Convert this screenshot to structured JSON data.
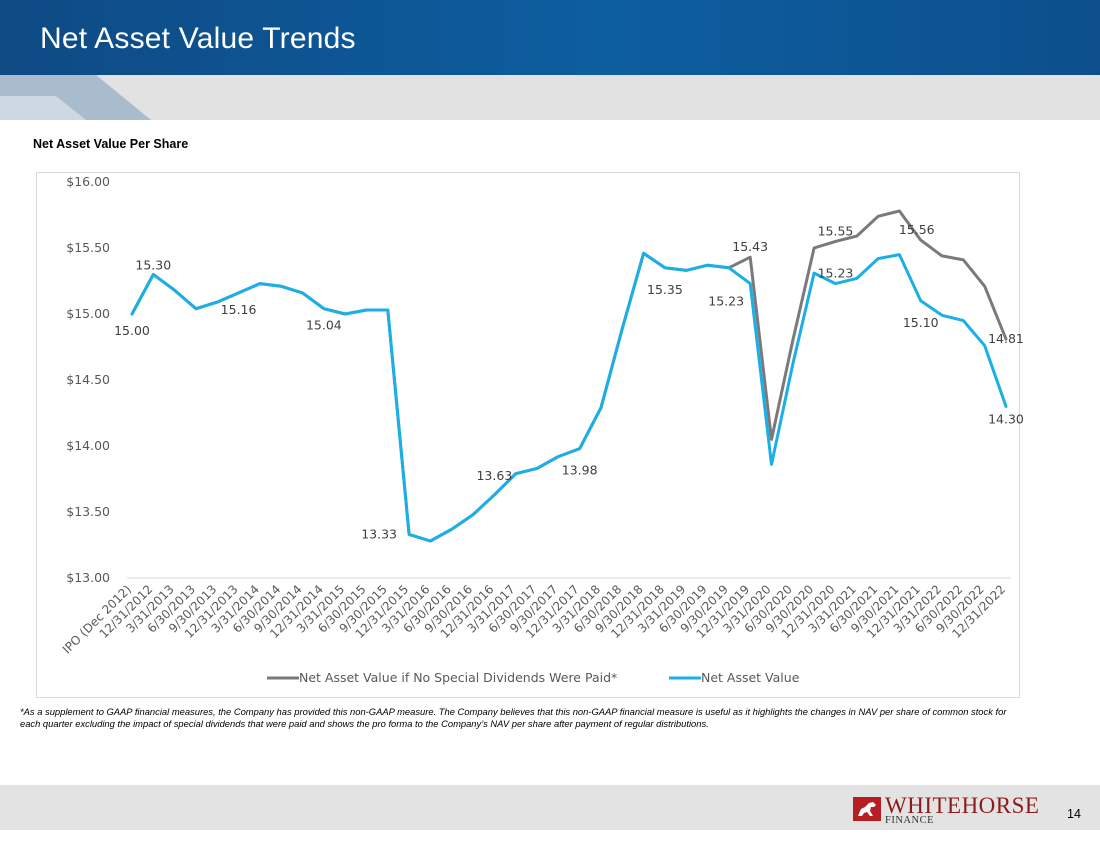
{
  "header": {
    "title": "Net Asset Value Trends"
  },
  "subtitle": "Net Asset Value Per Share",
  "footnote": "*As a supplement to GAAP financial measures, the Company has provided this non-GAAP measure. The Company believes that this non-GAAP financial measure is useful as it highlights the changes in NAV per share of common stock for each quarter excluding the impact of special dividends that were paid and shows the pro forma to the Company’s NAV per share after payment of regular distributions.",
  "logo": {
    "name": "WHITEHORSE",
    "sub": "FINANCE"
  },
  "page_number": "14",
  "colors": {
    "header_blue": "#0d5ea0",
    "nav_series": "#1aafe6",
    "nodiv_series": "#7a7a7a"
  },
  "chart_data": {
    "type": "line",
    "categories": [
      "IPO (Dec 2012)",
      "12/31/2012",
      "3/31/2013",
      "6/30/2013",
      "9/30/2013",
      "12/31/2013",
      "3/31/2014",
      "6/30/2014",
      "9/30/2014",
      "12/31/2014",
      "3/31/2015",
      "6/30/2015",
      "9/30/2015",
      "12/31/2015",
      "3/31/2016",
      "6/30/2016",
      "9/30/2016",
      "12/31/2016",
      "3/31/2017",
      "6/30/2017",
      "9/30/2017",
      "12/31/2017",
      "3/31/2018",
      "6/30/2018",
      "9/30/2018",
      "12/31/2018",
      "3/31/2019",
      "6/30/2019",
      "9/30/2019",
      "12/31/2019",
      "3/31/2020",
      "6/30/2020",
      "9/30/2020",
      "12/31/2020",
      "3/31/2021",
      "6/30/2021",
      "9/30/2021",
      "12/31/2021",
      "3/31/2022",
      "6/30/2022",
      "9/30/2022",
      "12/31/2022"
    ],
    "series": [
      {
        "name": "Net Asset Value if No Special Dividends Were Paid*",
        "color": "#7a7a7a",
        "values": [
          15.0,
          15.3,
          15.18,
          15.04,
          15.09,
          15.16,
          15.23,
          15.21,
          15.16,
          15.04,
          15.0,
          15.03,
          15.03,
          13.33,
          13.28,
          13.37,
          13.48,
          13.63,
          13.79,
          13.83,
          13.92,
          13.98,
          14.29,
          14.89,
          15.46,
          15.35,
          15.33,
          15.37,
          15.35,
          15.43,
          14.05,
          14.8,
          15.5,
          15.55,
          15.59,
          15.74,
          15.78,
          15.56,
          15.44,
          15.41,
          15.21,
          14.81
        ],
        "labels": [
          [
            0,
            "15.00"
          ],
          [
            1,
            "15.30"
          ],
          [
            5,
            "15.16"
          ],
          [
            9,
            "15.04"
          ],
          [
            29,
            "15.43"
          ],
          [
            33,
            "15.55"
          ],
          [
            37,
            "15.56"
          ],
          [
            41,
            "14.81"
          ]
        ]
      },
      {
        "name": "Net Asset Value",
        "color": "#1aafe6",
        "values": [
          15.0,
          15.3,
          15.18,
          15.04,
          15.09,
          15.16,
          15.23,
          15.21,
          15.16,
          15.04,
          15.0,
          15.03,
          15.03,
          13.33,
          13.28,
          13.37,
          13.48,
          13.63,
          13.79,
          13.83,
          13.92,
          13.98,
          14.29,
          14.89,
          15.46,
          15.35,
          15.33,
          15.37,
          15.35,
          15.23,
          13.86,
          14.62,
          15.31,
          15.23,
          15.27,
          15.42,
          15.45,
          15.1,
          14.99,
          14.95,
          14.76,
          14.3
        ],
        "labels": [
          [
            13,
            "13.33"
          ],
          [
            17,
            "13.63"
          ],
          [
            21,
            "13.98"
          ],
          [
            25,
            "15.35"
          ],
          [
            29,
            "15.23"
          ],
          [
            33,
            "15.23"
          ],
          [
            37,
            "15.10"
          ],
          [
            41,
            "14.30"
          ]
        ]
      }
    ],
    "y_tick_labels": [
      "$13.00",
      "$13.50",
      "$14.00",
      "$14.50",
      "$15.00",
      "$15.50",
      "$16.00"
    ],
    "ylim": [
      13.0,
      16.0
    ],
    "grid": "y-baseline only",
    "legend": "bottom"
  }
}
